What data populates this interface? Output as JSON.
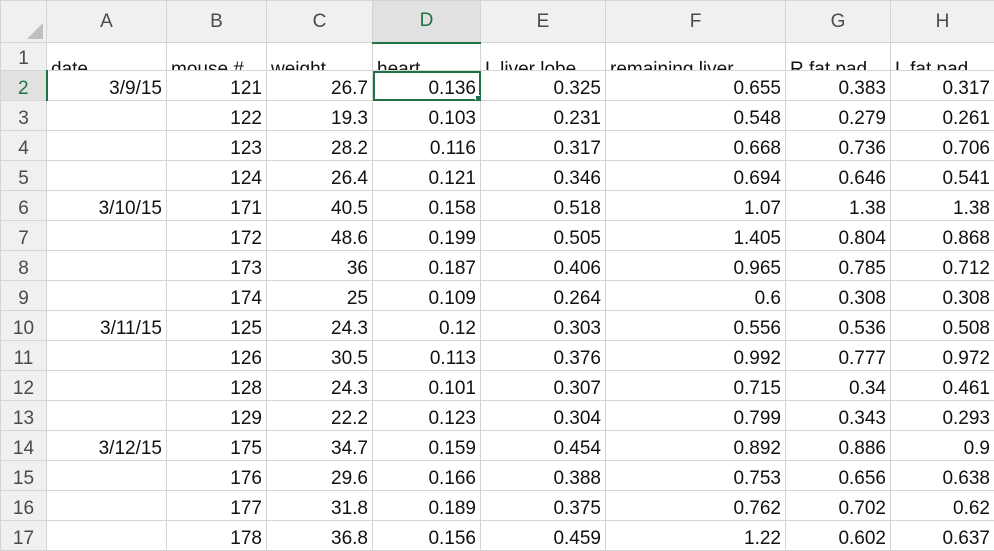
{
  "columns": [
    "A",
    "B",
    "C",
    "D",
    "E",
    "F",
    "G",
    "H"
  ],
  "selected_column": "D",
  "selected_row": "2",
  "header_row": {
    "row_number": "1",
    "cells": [
      "date",
      "mouse #",
      "weight",
      "heart",
      "L liver lobe",
      "remaining liver",
      "R fat pad",
      "L fat pad"
    ]
  },
  "rows": [
    {
      "n": "2",
      "date": "3/9/15",
      "mouse": "121",
      "weight": "26.7",
      "heart": "0.136",
      "l_liver": "0.325",
      "rem_liver": "0.655",
      "r_fat": "0.383",
      "l_fat": "0.317"
    },
    {
      "n": "3",
      "date": "",
      "mouse": "122",
      "weight": "19.3",
      "heart": "0.103",
      "l_liver": "0.231",
      "rem_liver": "0.548",
      "r_fat": "0.279",
      "l_fat": "0.261"
    },
    {
      "n": "4",
      "date": "",
      "mouse": "123",
      "weight": "28.2",
      "heart": "0.116",
      "l_liver": "0.317",
      "rem_liver": "0.668",
      "r_fat": "0.736",
      "l_fat": "0.706"
    },
    {
      "n": "5",
      "date": "",
      "mouse": "124",
      "weight": "26.4",
      "heart": "0.121",
      "l_liver": "0.346",
      "rem_liver": "0.694",
      "r_fat": "0.646",
      "l_fat": "0.541"
    },
    {
      "n": "6",
      "date": "3/10/15",
      "mouse": "171",
      "weight": "40.5",
      "heart": "0.158",
      "l_liver": "0.518",
      "rem_liver": "1.07",
      "r_fat": "1.38",
      "l_fat": "1.38"
    },
    {
      "n": "7",
      "date": "",
      "mouse": "172",
      "weight": "48.6",
      "heart": "0.199",
      "l_liver": "0.505",
      "rem_liver": "1.405",
      "r_fat": "0.804",
      "l_fat": "0.868"
    },
    {
      "n": "8",
      "date": "",
      "mouse": "173",
      "weight": "36",
      "heart": "0.187",
      "l_liver": "0.406",
      "rem_liver": "0.965",
      "r_fat": "0.785",
      "l_fat": "0.712"
    },
    {
      "n": "9",
      "date": "",
      "mouse": "174",
      "weight": "25",
      "heart": "0.109",
      "l_liver": "0.264",
      "rem_liver": "0.6",
      "r_fat": "0.308",
      "l_fat": "0.308"
    },
    {
      "n": "10",
      "date": "3/11/15",
      "mouse": "125",
      "weight": "24.3",
      "heart": "0.12",
      "l_liver": "0.303",
      "rem_liver": "0.556",
      "r_fat": "0.536",
      "l_fat": "0.508"
    },
    {
      "n": "11",
      "date": "",
      "mouse": "126",
      "weight": "30.5",
      "heart": "0.113",
      "l_liver": "0.376",
      "rem_liver": "0.992",
      "r_fat": "0.777",
      "l_fat": "0.972"
    },
    {
      "n": "12",
      "date": "",
      "mouse": "128",
      "weight": "24.3",
      "heart": "0.101",
      "l_liver": "0.307",
      "rem_liver": "0.715",
      "r_fat": "0.34",
      "l_fat": "0.461"
    },
    {
      "n": "13",
      "date": "",
      "mouse": "129",
      "weight": "22.2",
      "heart": "0.123",
      "l_liver": "0.304",
      "rem_liver": "0.799",
      "r_fat": "0.343",
      "l_fat": "0.293"
    },
    {
      "n": "14",
      "date": "3/12/15",
      "mouse": "175",
      "weight": "34.7",
      "heart": "0.159",
      "l_liver": "0.454",
      "rem_liver": "0.892",
      "r_fat": "0.886",
      "l_fat": "0.9"
    },
    {
      "n": "15",
      "date": "",
      "mouse": "176",
      "weight": "29.6",
      "heart": "0.166",
      "l_liver": "0.388",
      "rem_liver": "0.753",
      "r_fat": "0.656",
      "l_fat": "0.638"
    },
    {
      "n": "16",
      "date": "",
      "mouse": "177",
      "weight": "31.8",
      "heart": "0.189",
      "l_liver": "0.375",
      "rem_liver": "0.762",
      "r_fat": "0.702",
      "l_fat": "0.62"
    },
    {
      "n": "17",
      "date": "",
      "mouse": "178",
      "weight": "36.8",
      "heart": "0.156",
      "l_liver": "0.459",
      "rem_liver": "1.22",
      "r_fat": "0.602",
      "l_fat": "0.637"
    }
  ],
  "colors": {
    "selection_green": "#207245",
    "header_bg": "#f0f0f0",
    "gridline": "#d4d4d4"
  }
}
